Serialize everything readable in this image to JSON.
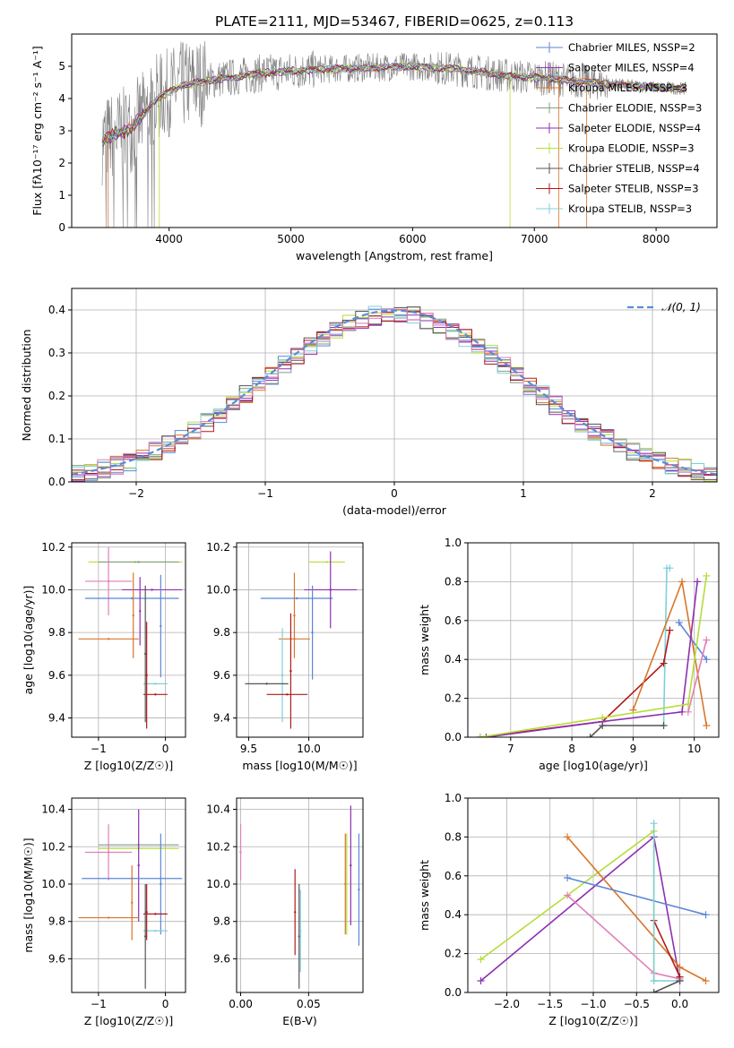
{
  "figure_title": "PLATE=2111, MJD=53467, FIBERID=0625, z=0.113",
  "colors": {
    "chabrier_miles": "#5b86d6",
    "salpeter_miles": "#8e3aa8",
    "kroupa_miles": "#d8762a",
    "chabrier_elodie": "#7f9f7f",
    "salpeter_elodie": "#8e2fb0",
    "kroupa_elodie": "#b6dd3a",
    "chabrier_stelib": "#555555",
    "salpeter_stelib": "#b01a1a",
    "kroupa_stelib": "#7fd0d8",
    "data": "#808080",
    "normal": "#5b8bd6",
    "pink": "#e07fb8",
    "grid": "#b0b0b0"
  },
  "chart_data": [
    {
      "id": "spectrum",
      "type": "line",
      "xlabel": "wavelength [Angstrom, rest frame]",
      "ylabel": "Flux [fλ10⁻¹⁷ erg cm⁻² s⁻¹ A⁻¹]",
      "xlim": [
        3200,
        8500
      ],
      "ylim": [
        0,
        6
      ],
      "xticks": [
        "4000",
        "5000",
        "6000",
        "7000",
        "8000"
      ],
      "yticks": [
        "0",
        "1",
        "2",
        "3",
        "4",
        "5"
      ],
      "data_range": [
        3450,
        8250
      ],
      "continuum": [
        [
          3450,
          2.7
        ],
        [
          3700,
          3.1
        ],
        [
          3900,
          4.0
        ],
        [
          4100,
          4.4
        ],
        [
          4400,
          4.6
        ],
        [
          4800,
          4.8
        ],
        [
          5200,
          4.9
        ],
        [
          5600,
          4.95
        ],
        [
          6000,
          5.0
        ],
        [
          6400,
          4.9
        ],
        [
          6800,
          4.7
        ],
        [
          7200,
          4.6
        ],
        [
          7600,
          4.45
        ],
        [
          8000,
          4.35
        ],
        [
          8250,
          4.3
        ]
      ],
      "legend": [
        {
          "label": "Chabrier MILES, NSSP=2",
          "color_key": "chabrier_miles"
        },
        {
          "label": "Salpeter MILES, NSSP=4",
          "color_key": "salpeter_miles"
        },
        {
          "label": "Kroupa MILES, NSSP=3",
          "color_key": "kroupa_miles"
        },
        {
          "label": "Chabrier ELODIE, NSSP=3",
          "color_key": "chabrier_elodie"
        },
        {
          "label": "Salpeter ELODIE, NSSP=4",
          "color_key": "salpeter_elodie"
        },
        {
          "label": "Kroupa ELODIE, NSSP=3",
          "color_key": "kroupa_elodie"
        },
        {
          "label": "Chabrier STELIB, NSSP=4",
          "color_key": "chabrier_stelib"
        },
        {
          "label": "Salpeter STELIB, NSSP=3",
          "color_key": "salpeter_stelib"
        },
        {
          "label": "Kroupa STELIB, NSSP=3",
          "color_key": "kroupa_stelib"
        }
      ]
    },
    {
      "id": "residuals",
      "type": "histogram",
      "xlabel": "(data-model)/error",
      "ylabel": "Normed distribution",
      "xlim": [
        -2.5,
        2.5
      ],
      "ylim": [
        0,
        0.45
      ],
      "xticks": [
        -2,
        -1,
        0,
        1,
        2
      ],
      "xtick_labels": [
        "−2",
        "−1",
        "0",
        "1",
        "2"
      ],
      "yticks": [
        0.0,
        0.1,
        0.2,
        0.3,
        0.4
      ],
      "ytick_labels": [
        "0.0",
        "0.1",
        "0.2",
        "0.3",
        "0.4"
      ],
      "bin_width": 0.1,
      "legend": [
        {
          "label": "𝒩(0, 1)",
          "color_key": "normal"
        }
      ]
    },
    {
      "id": "age_vs_Z",
      "type": "errorbar",
      "xlabel": "Z [log10(Z/Z☉)]",
      "ylabel": "age  [log10(age/yr)]",
      "xlim": [
        -1.4,
        0.3
      ],
      "ylim": [
        9.31,
        10.22
      ],
      "xticks": [
        "−1",
        "0"
      ],
      "yticks": [
        "9.4",
        "9.6",
        "9.8",
        "10.0",
        "10.2"
      ],
      "points": [
        {
          "color_key": "kroupa_elodie",
          "x": -0.45,
          "xerr": 0.7,
          "y": 10.13,
          "yerr": 0.0
        },
        {
          "color_key": "chabrier_elodie",
          "x": -0.4,
          "xerr": 0.6,
          "y": 10.13,
          "yerr": 0.0
        },
        {
          "color_key": "pink",
          "x": -0.85,
          "xerr": 0.35,
          "y": 10.04,
          "yerr": 0.16
        },
        {
          "color_key": "salpeter_elodie",
          "x": -0.2,
          "xerr": 0.45,
          "y": 10.0,
          "yerr": 0.0
        },
        {
          "color_key": "chabrier_miles",
          "x": -0.5,
          "xerr": 0.7,
          "y": 9.96,
          "yerr": 0.0
        },
        {
          "color_key": "kroupa_miles",
          "x": -0.85,
          "xerr": 0.45,
          "y": 9.77,
          "yerr": 0.0
        },
        {
          "color_key": "kroupa_miles",
          "x": -0.48,
          "xerr": 0.0,
          "y": 9.88,
          "yerr": 0.2
        },
        {
          "color_key": "chabrier_miles",
          "x": -0.07,
          "xerr": 0.0,
          "y": 9.83,
          "yerr": 0.24
        },
        {
          "color_key": "salpeter_elodie",
          "x": -0.38,
          "xerr": 0.0,
          "y": 9.9,
          "yerr": 0.16
        },
        {
          "color_key": "kroupa_stelib",
          "x": -0.15,
          "xerr": 0.18,
          "y": 9.56,
          "yerr": 0.0
        },
        {
          "color_key": "salpeter_stelib",
          "x": -0.15,
          "xerr": 0.18,
          "y": 9.51,
          "yerr": 0.0
        },
        {
          "color_key": "chabrier_stelib",
          "x": -0.3,
          "xerr": 0.0,
          "y": 9.7,
          "yerr": 0.32
        },
        {
          "color_key": "salpeter_stelib",
          "x": -0.28,
          "xerr": 0.0,
          "y": 9.6,
          "yerr": 0.25
        }
      ]
    },
    {
      "id": "age_vs_mass",
      "type": "errorbar",
      "xlabel": "mass [log10(M/M☉)]",
      "ylabel": "",
      "xlim": [
        9.4,
        10.45
      ],
      "ylim": [
        9.31,
        10.22
      ],
      "xticks": [
        "9.5",
        "10.0"
      ],
      "yticks": [
        "9.4",
        "9.6",
        "9.8",
        "10.0",
        "10.2"
      ],
      "points": [
        {
          "color_key": "kroupa_elodie",
          "x": 10.15,
          "xerr": 0.15,
          "y": 10.13,
          "yerr": 0.0
        },
        {
          "color_key": "salpeter_elodie",
          "x": 10.18,
          "xerr": 0.22,
          "y": 10.0,
          "yerr": 0.0
        },
        {
          "color_key": "chabrier_miles",
          "x": 9.9,
          "xerr": 0.3,
          "y": 9.96,
          "yerr": 0.0
        },
        {
          "color_key": "salpeter_elodie",
          "x": 10.18,
          "xerr": 0.0,
          "y": 10.0,
          "yerr": 0.18
        },
        {
          "color_key": "kroupa_miles",
          "x": 9.88,
          "xerr": 0.0,
          "y": 9.88,
          "yerr": 0.2
        },
        {
          "color_key": "kroupa_miles",
          "x": 9.88,
          "xerr": 0.13,
          "y": 9.77,
          "yerr": 0.0
        },
        {
          "color_key": "chabrier_miles",
          "x": 10.03,
          "xerr": 0.0,
          "y": 9.8,
          "yerr": 0.22
        },
        {
          "color_key": "kroupa_stelib",
          "x": 9.78,
          "xerr": 0.0,
          "y": 9.6,
          "yerr": 0.22
        },
        {
          "color_key": "chabrier_stelib",
          "x": 9.65,
          "xerr": 0.18,
          "y": 9.56,
          "yerr": 0.0
        },
        {
          "color_key": "salpeter_stelib",
          "x": 9.85,
          "xerr": 0.0,
          "y": 9.62,
          "yerr": 0.27
        },
        {
          "color_key": "salpeter_stelib",
          "x": 9.82,
          "xerr": 0.17,
          "y": 9.51,
          "yerr": 0.0
        }
      ]
    },
    {
      "id": "massweight_vs_age",
      "type": "line",
      "xlabel": "age  [log10(age/yr)]",
      "ylabel": "mass weight",
      "xlim": [
        6.3,
        10.4
      ],
      "ylim": [
        0,
        1
      ],
      "xticks": [
        "7",
        "8",
        "9",
        "10"
      ],
      "yticks": [
        "0.0",
        "0.2",
        "0.4",
        "0.6",
        "0.8",
        "1.0"
      ],
      "series": [
        {
          "color_key": "kroupa_stelib",
          "points": [
            [
              9.5,
              0.06
            ],
            [
              9.55,
              0.87
            ],
            [
              9.6,
              0.87
            ]
          ]
        },
        {
          "color_key": "salpeter_stelib",
          "points": [
            [
              6.5,
              0.0
            ],
            [
              8.5,
              0.08
            ],
            [
              9.5,
              0.38
            ],
            [
              9.6,
              0.55
            ]
          ]
        },
        {
          "color_key": "chabrier_stelib",
          "points": [
            [
              8.3,
              0.0
            ],
            [
              8.5,
              0.06
            ],
            [
              9.5,
              0.06
            ]
          ]
        },
        {
          "color_key": "kroupa_miles",
          "points": [
            [
              9.0,
              0.14
            ],
            [
              9.8,
              0.8
            ],
            [
              10.2,
              0.06
            ]
          ]
        },
        {
          "color_key": "chabrier_miles",
          "points": [
            [
              9.75,
              0.59
            ],
            [
              10.2,
              0.4
            ]
          ]
        },
        {
          "color_key": "salpeter_elodie",
          "points": [
            [
              6.6,
              0.0
            ],
            [
              8.5,
              0.08
            ],
            [
              9.8,
              0.13
            ],
            [
              10.05,
              0.8
            ]
          ]
        },
        {
          "color_key": "pink",
          "points": [
            [
              9.9,
              0.13
            ],
            [
              10.2,
              0.5
            ]
          ]
        },
        {
          "color_key": "kroupa_elodie",
          "points": [
            [
              6.5,
              0.0
            ],
            [
              8.5,
              0.1
            ],
            [
              9.9,
              0.17
            ],
            [
              10.2,
              0.83
            ]
          ]
        }
      ]
    },
    {
      "id": "mass_vs_Z",
      "type": "errorbar",
      "xlabel": "Z [log10(Z/Z☉)]",
      "ylabel": "mass [log10(M/M☉)]",
      "xlim": [
        -1.4,
        0.3
      ],
      "ylim": [
        9.42,
        10.46
      ],
      "xticks": [
        "−1",
        "0"
      ],
      "yticks": [
        "9.6",
        "9.8",
        "10.0",
        "10.2",
        "10.4"
      ],
      "points": [
        {
          "color_key": "chabrier_elodie",
          "x": -0.4,
          "xerr": 0.6,
          "y": 10.21,
          "yerr": 0.0
        },
        {
          "color_key": "kroupa_elodie",
          "x": -0.4,
          "xerr": 0.6,
          "y": 10.19,
          "yerr": 0.0
        },
        {
          "color_key": "pink",
          "x": -0.85,
          "xerr": 0.35,
          "y": 10.17,
          "yerr": 0.15
        },
        {
          "color_key": "salpeter_elodie",
          "x": -0.4,
          "xerr": 0.0,
          "y": 10.1,
          "yerr": 0.3
        },
        {
          "color_key": "chabrier_miles",
          "x": -0.5,
          "xerr": 0.75,
          "y": 10.03,
          "yerr": 0.0
        },
        {
          "color_key": "chabrier_miles",
          "x": -0.07,
          "xerr": 0.0,
          "y": 10.0,
          "yerr": 0.27
        },
        {
          "color_key": "kroupa_miles",
          "x": -0.5,
          "xerr": 0.0,
          "y": 9.9,
          "yerr": 0.2
        },
        {
          "color_key": "kroupa_miles",
          "x": -0.85,
          "xerr": 0.45,
          "y": 9.82,
          "yerr": 0.0
        },
        {
          "color_key": "salpeter_stelib",
          "x": -0.15,
          "xerr": 0.18,
          "y": 9.84,
          "yerr": 0.0
        },
        {
          "color_key": "kroupa_stelib",
          "x": -0.15,
          "xerr": 0.18,
          "y": 9.75,
          "yerr": 0.0
        },
        {
          "color_key": "chabrier_stelib",
          "x": -0.3,
          "xerr": 0.0,
          "y": 9.72,
          "yerr": 0.28
        },
        {
          "color_key": "salpeter_stelib",
          "x": -0.28,
          "xerr": 0.0,
          "y": 9.85,
          "yerr": 0.15
        }
      ]
    },
    {
      "id": "mass_vs_EBV",
      "type": "errorbar",
      "xlabel": "E(B-V)",
      "ylabel": "",
      "xlim": [
        -0.003,
        0.09
      ],
      "ylim": [
        9.42,
        10.46
      ],
      "xticks": [
        "0.00",
        "0.05"
      ],
      "yticks": [
        "9.6",
        "9.8",
        "10.0",
        "10.2",
        "10.4"
      ],
      "points": [
        {
          "color_key": "pink",
          "x": 0.0,
          "xerr": 0.0,
          "y": 10.17,
          "yerr": 0.15
        },
        {
          "color_key": "salpeter_stelib",
          "x": 0.04,
          "xerr": 0.0,
          "y": 9.85,
          "yerr": 0.23
        },
        {
          "color_key": "chabrier_stelib",
          "x": 0.043,
          "xerr": 0.0,
          "y": 9.72,
          "yerr": 0.28
        },
        {
          "color_key": "kroupa_stelib",
          "x": 0.044,
          "xerr": 0.0,
          "y": 9.75,
          "yerr": 0.22
        },
        {
          "color_key": "kroupa_miles",
          "x": 0.077,
          "xerr": 0.0,
          "y": 10.0,
          "yerr": 0.27
        },
        {
          "color_key": "kroupa_elodie",
          "x": 0.078,
          "xerr": 0.0,
          "y": 10.0,
          "yerr": 0.27
        },
        {
          "color_key": "salpeter_elodie",
          "x": 0.081,
          "xerr": 0.0,
          "y": 10.1,
          "yerr": 0.32
        },
        {
          "color_key": "chabrier_miles",
          "x": 0.087,
          "xerr": 0.0,
          "y": 9.97,
          "yerr": 0.3
        }
      ]
    },
    {
      "id": "massweight_vs_Z",
      "type": "line",
      "xlabel": "Z [log10(Z/Z☉)]",
      "ylabel": "mass weight",
      "xlim": [
        -2.45,
        0.45
      ],
      "ylim": [
        0,
        1
      ],
      "xticks": [
        "−2.0",
        "−1.5",
        "−1.0",
        "−0.5",
        "0.0"
      ],
      "yticks": [
        "0.0",
        "0.2",
        "0.4",
        "0.6",
        "0.8",
        "1.0"
      ],
      "series": [
        {
          "color_key": "salpeter_elodie",
          "points": [
            [
              -2.3,
              0.06
            ],
            [
              -0.3,
              0.8
            ],
            [
              0.0,
              0.06
            ]
          ]
        },
        {
          "color_key": "kroupa_elodie",
          "points": [
            [
              -2.3,
              0.17
            ],
            [
              -0.3,
              0.83
            ],
            [
              -0.3,
              0.06
            ]
          ]
        },
        {
          "color_key": "pink",
          "points": [
            [
              -1.3,
              0.5
            ],
            [
              -0.3,
              0.1
            ],
            [
              0.0,
              0.07
            ]
          ]
        },
        {
          "color_key": "kroupa_miles",
          "points": [
            [
              -1.3,
              0.8
            ],
            [
              0.0,
              0.13
            ],
            [
              0.3,
              0.06
            ]
          ]
        },
        {
          "color_key": "chabrier_miles",
          "points": [
            [
              -1.3,
              0.59
            ],
            [
              0.3,
              0.4
            ]
          ]
        },
        {
          "color_key": "salpeter_stelib",
          "points": [
            [
              -0.3,
              0.37
            ],
            [
              0.0,
              0.08
            ]
          ]
        },
        {
          "color_key": "kroupa_stelib",
          "points": [
            [
              -0.3,
              0.87
            ],
            [
              -0.3,
              0.06
            ],
            [
              0.0,
              0.06
            ]
          ]
        },
        {
          "color_key": "chabrier_stelib",
          "points": [
            [
              -0.3,
              0.0
            ],
            [
              0.0,
              0.06
            ]
          ]
        }
      ]
    }
  ]
}
